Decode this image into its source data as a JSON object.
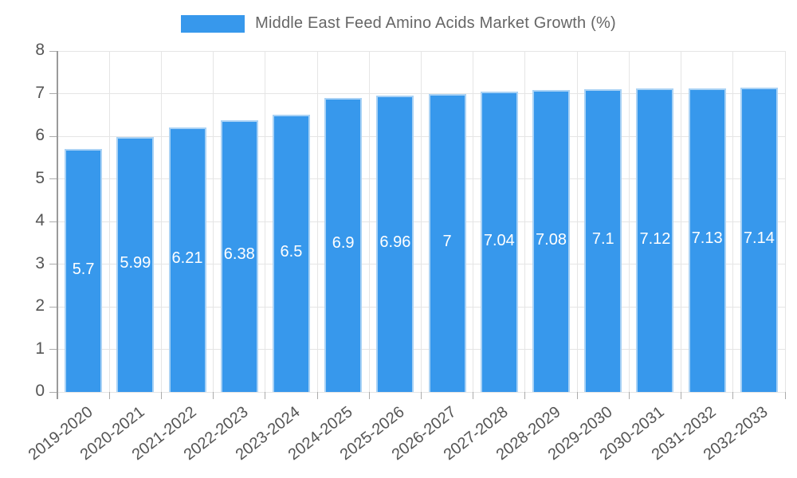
{
  "legend": {
    "label": "Middle East Feed Amino Acids Market Growth (%)"
  },
  "chart_data": {
    "type": "bar",
    "title": "Middle East Feed Amino Acids Market Growth (%)",
    "categories": [
      "2019-2020",
      "2020-2021",
      "2021-2022",
      "2022-2023",
      "2023-2024",
      "2024-2025",
      "2025-2026",
      "2026-2027",
      "2027-2028",
      "2028-2029",
      "2029-2030",
      "2030-2031",
      "2031-2032",
      "2032-2033"
    ],
    "values": [
      5.7,
      5.99,
      6.21,
      6.38,
      6.5,
      6.9,
      6.96,
      7,
      7.04,
      7.08,
      7.1,
      7.12,
      7.13,
      7.14
    ],
    "value_labels": [
      "5.7",
      "5.99",
      "6.21",
      "6.38",
      "6.5",
      "6.9",
      "6.96",
      "7",
      "7.04",
      "7.08",
      "7.1",
      "7.12",
      "7.13",
      "7.14"
    ],
    "xlabel": "",
    "ylabel": "",
    "ylim": [
      0,
      8
    ],
    "yticks": [
      0,
      1,
      2,
      3,
      4,
      5,
      6,
      7,
      8
    ],
    "grid": true,
    "legend_position": "top-center",
    "x_label_rotation_deg": -38,
    "colors": {
      "bar_fill": "#3798EC",
      "bar_border": "#A9D2F5",
      "value_label": "#FFFFFF",
      "gridline": "#E5E5E5",
      "axis_line": "#9A9A9A",
      "tick_mark": "#ABABAB",
      "tick_label": "#555555",
      "title_text": "#666666",
      "background": "#FFFFFF"
    }
  }
}
